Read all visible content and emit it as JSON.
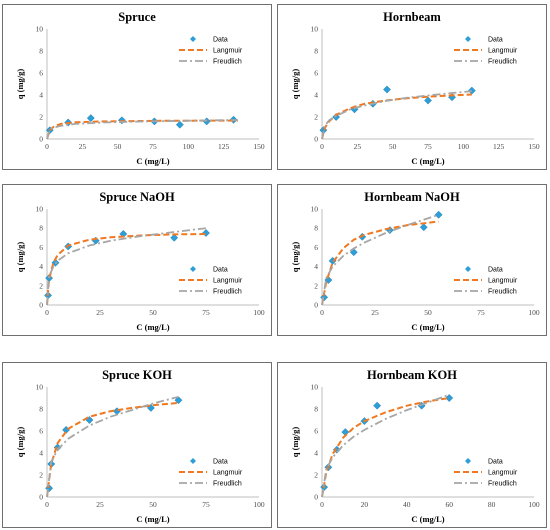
{
  "chart_data": [
    {
      "type": "scatter",
      "title": "Spruce",
      "xlabel": "C (mg/L)",
      "ylabel": "q (mg/g)",
      "xlim": [
        0,
        150
      ],
      "ylim": [
        0,
        10
      ],
      "xticks": [
        "0",
        "25",
        "50",
        "75",
        "100",
        "125",
        "150"
      ],
      "yticks": [
        "0",
        "2",
        "4",
        "6",
        "8",
        "10"
      ],
      "legend": "top-right",
      "series": [
        {
          "name": "Data",
          "kind": "markers",
          "color": "#2E9ED8",
          "x": [
            2,
            15,
            31,
            53,
            76,
            94,
            113,
            132
          ],
          "y": [
            0.8,
            1.5,
            1.9,
            1.7,
            1.6,
            1.3,
            1.6,
            1.75
          ]
        },
        {
          "name": "Langmuir",
          "kind": "dash",
          "color": "#F07820",
          "x": [
            0,
            2,
            5,
            10,
            20,
            40,
            60,
            80,
            100,
            120,
            135
          ],
          "y": [
            0.0,
            0.8,
            1.15,
            1.38,
            1.52,
            1.6,
            1.63,
            1.65,
            1.66,
            1.67,
            1.67
          ]
        },
        {
          "name": "Freudlich",
          "kind": "dashdot",
          "color": "#A6A6A6",
          "x": [
            0,
            2,
            5,
            10,
            20,
            40,
            60,
            80,
            100,
            120,
            135
          ],
          "y": [
            0.0,
            0.85,
            1.05,
            1.2,
            1.37,
            1.5,
            1.57,
            1.62,
            1.66,
            1.7,
            1.73
          ]
        }
      ]
    },
    {
      "type": "scatter",
      "title": "Hornbeam",
      "xlabel": "C (mg/L)",
      "ylabel": "q (mg/g)",
      "xlim": [
        0,
        150
      ],
      "ylim": [
        0,
        10
      ],
      "xticks": [
        "0",
        "25",
        "50",
        "75",
        "100",
        "125",
        "150"
      ],
      "yticks": [
        "0",
        "2",
        "4",
        "6",
        "8",
        "10"
      ],
      "legend": "top-right",
      "series": [
        {
          "name": "Data",
          "kind": "markers",
          "color": "#2E9ED8",
          "x": [
            1,
            10,
            23,
            36,
            46,
            75,
            92,
            106
          ],
          "y": [
            0.8,
            2.0,
            2.7,
            3.2,
            4.5,
            3.5,
            3.8,
            4.4
          ]
        },
        {
          "name": "Langmuir",
          "kind": "dash",
          "color": "#F07820",
          "x": [
            0,
            2,
            5,
            10,
            20,
            30,
            45,
            60,
            75,
            90,
            106
          ],
          "y": [
            0.0,
            1.0,
            1.6,
            2.2,
            2.8,
            3.2,
            3.5,
            3.7,
            3.85,
            3.95,
            4.05
          ]
        },
        {
          "name": "Freudlich",
          "kind": "dashdot",
          "color": "#A6A6A6",
          "x": [
            0,
            2,
            5,
            10,
            20,
            30,
            45,
            60,
            75,
            90,
            106
          ],
          "y": [
            0.0,
            1.2,
            1.7,
            2.1,
            2.7,
            3.05,
            3.45,
            3.75,
            3.95,
            4.15,
            4.35
          ]
        }
      ]
    },
    {
      "type": "scatter",
      "title": "Spruce NaOH",
      "xlabel": "C (mg/L)",
      "ylabel": "q (mg/g)",
      "xlim": [
        0,
        100
      ],
      "ylim": [
        0,
        10
      ],
      "xticks": [
        "0",
        "25",
        "50",
        "75",
        "100"
      ],
      "yticks": [
        "0",
        "2",
        "4",
        "6",
        "8",
        "10"
      ],
      "legend": "bottom-right",
      "series": [
        {
          "name": "Data",
          "kind": "markers",
          "color": "#2E9ED8",
          "x": [
            0.5,
            1,
            4,
            10,
            23,
            36,
            60,
            75
          ],
          "y": [
            1.0,
            2.8,
            4.4,
            6.1,
            6.7,
            7.4,
            7.0,
            7.5
          ]
        },
        {
          "name": "Langmuir",
          "kind": "dash",
          "color": "#F07820",
          "x": [
            0,
            1,
            3,
            5,
            10,
            20,
            30,
            45,
            60,
            75
          ],
          "y": [
            0.0,
            2.7,
            4.4,
            5.2,
            6.2,
            6.8,
            7.05,
            7.25,
            7.35,
            7.4
          ]
        },
        {
          "name": "Freudlich",
          "kind": "dashdot",
          "color": "#A6A6A6",
          "x": [
            0,
            1,
            3,
            5,
            10,
            20,
            30,
            45,
            60,
            75
          ],
          "y": [
            0.0,
            3.0,
            4.0,
            4.6,
            5.4,
            6.2,
            6.7,
            7.2,
            7.6,
            8.0
          ]
        }
      ]
    },
    {
      "type": "scatter",
      "title": "Hornbeam NaOH",
      "xlabel": "C (mg/L)",
      "ylabel": "q (mg/g)",
      "xlim": [
        0,
        100
      ],
      "ylim": [
        0,
        10
      ],
      "xticks": [
        "0",
        "25",
        "50",
        "75",
        "100"
      ],
      "yticks": [
        "0",
        "2",
        "4",
        "6",
        "8",
        "10"
      ],
      "legend": "bottom-right",
      "series": [
        {
          "name": "Data",
          "kind": "markers",
          "color": "#2E9ED8",
          "x": [
            1,
            3,
            5,
            15,
            19,
            32,
            48,
            55
          ],
          "y": [
            0.8,
            2.6,
            4.6,
            5.5,
            7.1,
            7.8,
            8.1,
            9.4
          ]
        },
        {
          "name": "Langmuir",
          "kind": "dash",
          "color": "#F07820",
          "x": [
            0,
            2,
            5,
            10,
            15,
            20,
            30,
            40,
            55
          ],
          "y": [
            0.0,
            2.4,
            4.4,
            5.9,
            6.8,
            7.3,
            7.9,
            8.3,
            8.7
          ]
        },
        {
          "name": "Freudlich",
          "kind": "dashdot",
          "color": "#A6A6A6",
          "x": [
            0,
            2,
            5,
            10,
            15,
            20,
            30,
            40,
            55
          ],
          "y": [
            0.0,
            2.8,
            4.0,
            5.1,
            5.9,
            6.5,
            7.5,
            8.3,
            9.4
          ]
        }
      ]
    },
    {
      "type": "scatter",
      "title": "Spruce KOH",
      "xlabel": "C (mg/L)",
      "ylabel": "q (mg/g)",
      "xlim": [
        0,
        100
      ],
      "ylim": [
        0,
        10
      ],
      "xticks": [
        "0",
        "25",
        "50",
        "75",
        "100"
      ],
      "yticks": [
        "0",
        "2",
        "4",
        "6",
        "8",
        "10"
      ],
      "legend": "bottom-right",
      "series": [
        {
          "name": "Data",
          "kind": "markers",
          "color": "#2E9ED8",
          "x": [
            1,
            2,
            5,
            9,
            20,
            33,
            49,
            62
          ],
          "y": [
            0.8,
            3.0,
            4.5,
            6.1,
            7.0,
            7.8,
            8.1,
            8.8
          ]
        },
        {
          "name": "Langmuir",
          "kind": "dash",
          "color": "#F07820",
          "x": [
            0,
            2,
            5,
            10,
            20,
            30,
            40,
            50,
            62
          ],
          "y": [
            0.0,
            3.0,
            4.9,
            6.2,
            7.3,
            7.8,
            8.1,
            8.35,
            8.55
          ]
        },
        {
          "name": "Freudlich",
          "kind": "dashdot",
          "color": "#A6A6A6",
          "x": [
            0,
            2,
            5,
            10,
            20,
            30,
            40,
            50,
            62
          ],
          "y": [
            0.0,
            3.2,
            4.3,
            5.3,
            6.5,
            7.3,
            7.9,
            8.5,
            9.1
          ]
        }
      ]
    },
    {
      "type": "scatter",
      "title": "Hornbeam KOH",
      "xlabel": "C (mg/L)",
      "ylabel": "q (mg/g)",
      "xlim": [
        0,
        100
      ],
      "ylim": [
        0,
        10
      ],
      "xticks": [
        "0",
        "20",
        "40",
        "60",
        "80",
        "100"
      ],
      "yticks": [
        "0",
        "2",
        "4",
        "6",
        "8",
        "10"
      ],
      "legend": "bottom-right",
      "series": [
        {
          "name": "Data",
          "kind": "markers",
          "color": "#2E9ED8",
          "x": [
            1,
            3,
            7,
            11,
            20,
            26,
            47,
            60
          ],
          "y": [
            0.9,
            2.7,
            4.3,
            5.9,
            6.9,
            8.3,
            8.3,
            9.0
          ]
        },
        {
          "name": "Langmuir",
          "kind": "dash",
          "color": "#F07820",
          "x": [
            0,
            2,
            5,
            10,
            15,
            20,
            30,
            40,
            50,
            60
          ],
          "y": [
            0.0,
            2.2,
            3.9,
            5.4,
            6.3,
            6.9,
            7.7,
            8.3,
            8.7,
            9.0
          ]
        },
        {
          "name": "Freudlich",
          "kind": "dashdot",
          "color": "#A6A6A6",
          "x": [
            0,
            2,
            5,
            10,
            15,
            20,
            30,
            40,
            50,
            60
          ],
          "y": [
            0.0,
            2.5,
            3.6,
            4.7,
            5.5,
            6.1,
            7.1,
            7.9,
            8.6,
            9.3
          ]
        }
      ]
    }
  ]
}
